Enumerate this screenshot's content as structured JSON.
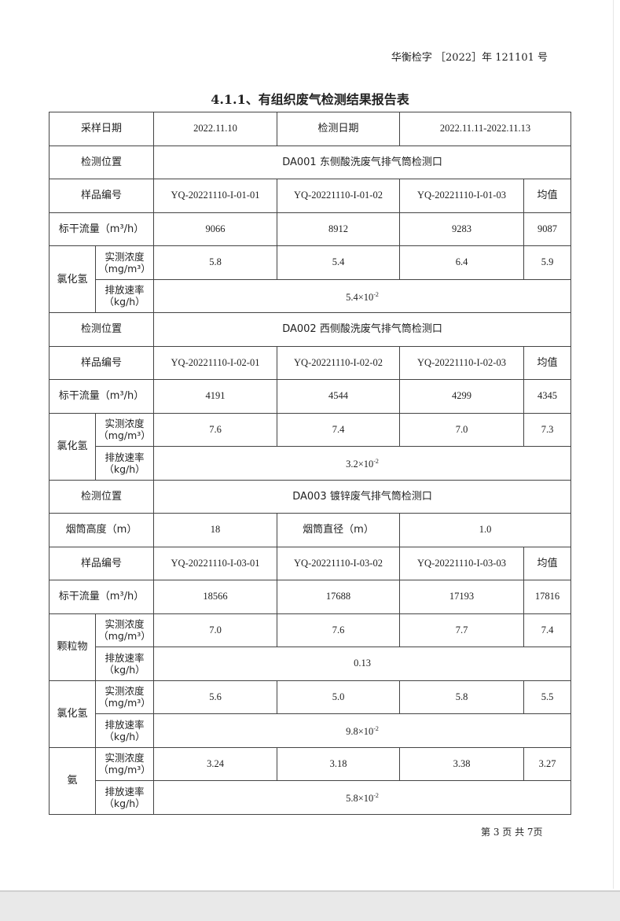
{
  "header": {
    "doc_number": "华衡检字 ［2022］年 121101 号"
  },
  "title": "4.1.1、有组织废气检测结果报告表",
  "table": {
    "sampling_date_label": "采样日期",
    "sampling_date": "2022.11.10",
    "test_date_label": "检测日期",
    "test_date": "2022.11.11-2022.11.13",
    "location_label": "检测位置",
    "sample_no_label": "样品编号",
    "mean_label": "均值",
    "flow_label": "标干流量（m³/h）",
    "conc_label_1": "实测浓度",
    "conc_label_2": "（mg/m³）",
    "rate_label_1": "排放速率",
    "rate_label_2": "（kg/h）",
    "sections": [
      {
        "location": "DA001 东侧酸洗废气排气筒检测口",
        "samples": [
          "YQ-20221110-I-01-01",
          "YQ-20221110-I-01-02",
          "YQ-20221110-I-01-03"
        ],
        "flow": [
          "9066",
          "8912",
          "9283",
          "9087"
        ],
        "pollutants": [
          {
            "name": "氯化氢",
            "conc": [
              "5.8",
              "5.4",
              "6.4",
              "5.9"
            ],
            "rate_base": "5.4×10",
            "rate_exp": "-2"
          }
        ]
      },
      {
        "location": "DA002 西侧酸洗废气排气筒检测口",
        "samples": [
          "YQ-20221110-I-02-01",
          "YQ-20221110-I-02-02",
          "YQ-20221110-I-02-03"
        ],
        "flow": [
          "4191",
          "4544",
          "4299",
          "4345"
        ],
        "pollutants": [
          {
            "name": "氯化氢",
            "conc": [
              "7.6",
              "7.4",
              "7.0",
              "7.3"
            ],
            "rate_base": "3.2×10",
            "rate_exp": "-2"
          }
        ]
      },
      {
        "location": "DA003 镀锌废气排气筒检测口",
        "stack_height_label": "烟筒高度（m）",
        "stack_height": "18",
        "stack_diameter_label": "烟筒直径（m）",
        "stack_diameter": "1.0",
        "samples": [
          "YQ-20221110-I-03-01",
          "YQ-20221110-I-03-02",
          "YQ-20221110-I-03-03"
        ],
        "flow": [
          "18566",
          "17688",
          "17193",
          "17816"
        ],
        "pollutants": [
          {
            "name": "颗粒物",
            "conc": [
              "7.0",
              "7.6",
              "7.7",
              "7.4"
            ],
            "rate": "0.13"
          },
          {
            "name": "氯化氢",
            "conc": [
              "5.6",
              "5.0",
              "5.8",
              "5.5"
            ],
            "rate_base": "9.8×10",
            "rate_exp": "-2"
          },
          {
            "name": "氨",
            "conc": [
              "3.24",
              "3.18",
              "3.38",
              "3.27"
            ],
            "rate_base": "5.8×10",
            "rate_exp": "-2"
          }
        ]
      }
    ]
  },
  "footer": {
    "page": "第 3 页 共 7页"
  }
}
